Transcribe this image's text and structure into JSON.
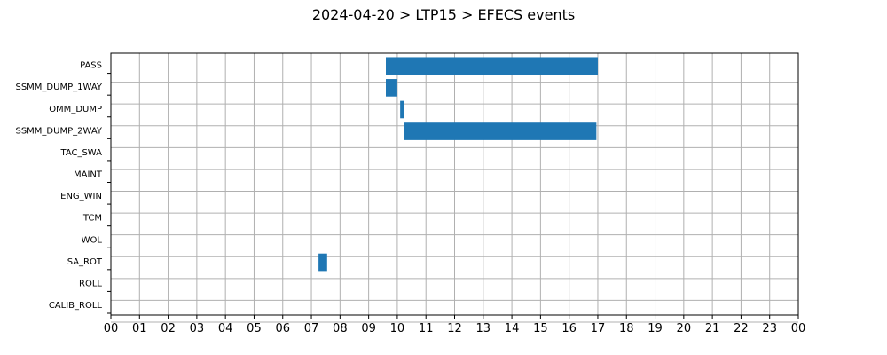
{
  "page": {
    "title": "2024-04-20 > LTP15 > EFECS events"
  },
  "chart_data": {
    "type": "bar",
    "orientation": "horizontal-timeline",
    "title": "2024-04-20 > LTP15 > EFECS events",
    "xlabel": "",
    "ylabel": "",
    "categories": [
      "PASS",
      "SSMM_DUMP_1WAY",
      "OMM_DUMP",
      "SSMM_DUMP_2WAY",
      "TAC_SWA",
      "MAINT",
      "ENG_WIN",
      "TCM",
      "WOL",
      "SA_ROT",
      "ROLL",
      "CALIB_ROLL"
    ],
    "x_tick_labels": [
      "00",
      "01",
      "02",
      "03",
      "04",
      "05",
      "06",
      "07",
      "08",
      "09",
      "10",
      "11",
      "12",
      "13",
      "14",
      "15",
      "16",
      "17",
      "18",
      "19",
      "20",
      "21",
      "22",
      "23",
      "00"
    ],
    "xlim_hours": [
      0,
      24
    ],
    "grid": true,
    "bar_color": "#1f77b4",
    "grid_color": "#b0b0b0",
    "events": [
      {
        "category": "PASS",
        "start_hour": 9.6,
        "end_hour": 17.0
      },
      {
        "category": "SSMM_DUMP_1WAY",
        "start_hour": 9.6,
        "end_hour": 10.0
      },
      {
        "category": "OMM_DUMP",
        "start_hour": 10.1,
        "end_hour": 10.25
      },
      {
        "category": "SSMM_DUMP_2WAY",
        "start_hour": 10.25,
        "end_hour": 16.95
      },
      {
        "category": "SA_ROT",
        "start_hour": 7.25,
        "end_hour": 7.55
      }
    ]
  }
}
